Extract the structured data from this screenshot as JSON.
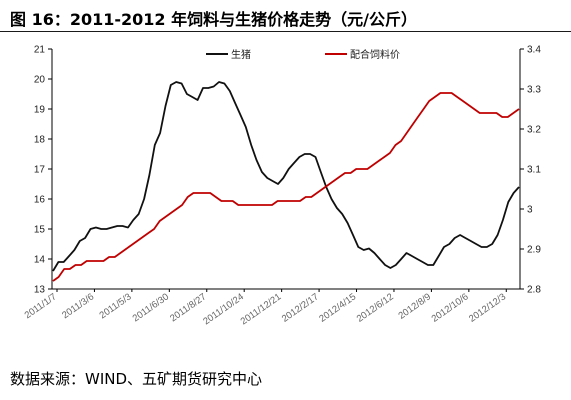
{
  "title": "图 16：2011-2012 年饲料与生猪价格走势（元/公斤）",
  "source": "数据来源：WIND、五矿期货研究中心",
  "chart_data": {
    "type": "line",
    "x_ticks": [
      "2011/1/7",
      "2011/3/6",
      "2011/5/3",
      "2011/6/30",
      "2011/8/27",
      "2011/10/24",
      "2011/12/21",
      "2012/2/17",
      "2012/4/15",
      "2012/6/12",
      "2012/8/9",
      "2012/10/6",
      "2012/12/3"
    ],
    "y_left": {
      "min": 13,
      "max": 21,
      "ticks": [
        "13",
        "14",
        "15",
        "16",
        "17",
        "18",
        "19",
        "20",
        "21"
      ]
    },
    "y_right": {
      "min": 2.8,
      "max": 3.4,
      "ticks": [
        "2.8",
        "2.9",
        "3",
        "3.1",
        "3.2",
        "3.3",
        "3.4"
      ]
    },
    "legend": {
      "position": "top"
    },
    "grid": false,
    "series": [
      {
        "name": "生猪",
        "axis": "left",
        "color": "#111111",
        "values": [
          13.6,
          13.9,
          13.9,
          14.1,
          14.3,
          14.6,
          14.7,
          15.0,
          15.05,
          15.0,
          15.0,
          15.05,
          15.1,
          15.1,
          15.05,
          15.3,
          15.5,
          16.0,
          16.8,
          17.8,
          18.2,
          19.1,
          19.8,
          19.9,
          19.85,
          19.5,
          19.4,
          19.3,
          19.7,
          19.7,
          19.75,
          19.9,
          19.85,
          19.6,
          19.2,
          18.8,
          18.4,
          17.8,
          17.3,
          16.9,
          16.7,
          16.6,
          16.5,
          16.7,
          17.0,
          17.2,
          17.4,
          17.5,
          17.5,
          17.4,
          16.9,
          16.4,
          16.0,
          15.7,
          15.5,
          15.2,
          14.8,
          14.4,
          14.3,
          14.35,
          14.2,
          14.0,
          13.8,
          13.7,
          13.8,
          14.0,
          14.2,
          14.1,
          14.0,
          13.9,
          13.8,
          13.8,
          14.1,
          14.4,
          14.5,
          14.7,
          14.8,
          14.7,
          14.6,
          14.5,
          14.4,
          14.4,
          14.5,
          14.8,
          15.3,
          15.9,
          16.2,
          16.4
        ]
      },
      {
        "name": "配合饲料价",
        "axis": "right",
        "color": "#c00000",
        "values": [
          2.82,
          2.83,
          2.85,
          2.85,
          2.86,
          2.86,
          2.87,
          2.87,
          2.87,
          2.87,
          2.88,
          2.88,
          2.89,
          2.9,
          2.91,
          2.92,
          2.93,
          2.94,
          2.95,
          2.97,
          2.98,
          2.99,
          3.0,
          3.01,
          3.03,
          3.04,
          3.04,
          3.04,
          3.04,
          3.03,
          3.02,
          3.02,
          3.02,
          3.01,
          3.01,
          3.01,
          3.01,
          3.01,
          3.01,
          3.01,
          3.02,
          3.02,
          3.02,
          3.02,
          3.02,
          3.03,
          3.03,
          3.04,
          3.05,
          3.06,
          3.07,
          3.08,
          3.09,
          3.09,
          3.1,
          3.1,
          3.1,
          3.11,
          3.12,
          3.13,
          3.14,
          3.16,
          3.17,
          3.19,
          3.21,
          3.23,
          3.25,
          3.27,
          3.28,
          3.29,
          3.29,
          3.29,
          3.28,
          3.27,
          3.26,
          3.25,
          3.24,
          3.24,
          3.24,
          3.24,
          3.23,
          3.23,
          3.24,
          3.25
        ]
      }
    ]
  }
}
